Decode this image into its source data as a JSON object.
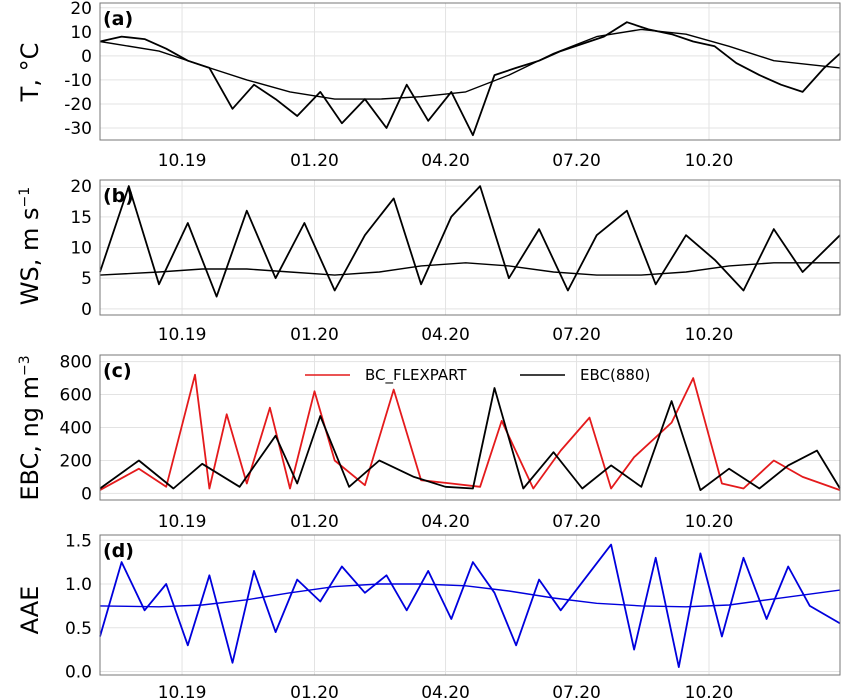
{
  "figure": {
    "x_tick_labels": [
      "10.19",
      "01.20",
      "04.20",
      "07.20",
      "10.20"
    ]
  },
  "chart_data": [
    {
      "type": "line",
      "panel_label": "(a)",
      "ylabel": "T, °C",
      "ylabel_main": "T, ",
      "ylabel_unit": "°C",
      "ylim": [
        -35,
        22
      ],
      "y_ticks": [
        20,
        10,
        0,
        -10,
        -20,
        -30
      ],
      "x_range": [
        "2019-08-05",
        "2020-12-31"
      ],
      "x_tick_dates": [
        "2019-10-01",
        "2020-01-01",
        "2020-04-01",
        "2020-07-01",
        "2020-10-01"
      ],
      "x_tick_labels": [
        "10.19",
        "01.20",
        "04.20",
        "07.20",
        "10.20"
      ],
      "grid": true,
      "series": [
        {
          "color": "#000000",
          "style": "daily",
          "x": [
            "2019-08-05",
            "2019-08-20",
            "2019-09-05",
            "2019-09-20",
            "2019-10-05",
            "2019-10-20",
            "2019-11-05",
            "2019-11-20",
            "2019-12-05",
            "2019-12-20",
            "2020-01-05",
            "2020-01-20",
            "2020-02-05",
            "2020-02-20",
            "2020-03-05",
            "2020-03-20",
            "2020-04-05",
            "2020-04-20",
            "2020-05-05",
            "2020-05-20",
            "2020-06-05",
            "2020-06-20",
            "2020-07-05",
            "2020-07-20",
            "2020-08-05",
            "2020-08-20",
            "2020-09-05",
            "2020-09-20",
            "2020-10-05",
            "2020-10-20",
            "2020-11-05",
            "2020-11-20",
            "2020-12-05",
            "2020-12-20",
            "2020-12-31"
          ],
          "y": [
            6,
            8,
            7,
            3,
            -2,
            -5,
            -22,
            -12,
            -18,
            -25,
            -15,
            -28,
            -18,
            -30,
            -12,
            -27,
            -15,
            -33,
            -8,
            -5,
            -2,
            2,
            5,
            8,
            14,
            11,
            9,
            6,
            4,
            -3,
            -8,
            -12,
            -15,
            -5,
            1
          ]
        },
        {
          "color": "#000000",
          "style": "smooth",
          "x": [
            "2019-08-05",
            "2019-09-15",
            "2019-10-15",
            "2019-11-15",
            "2019-12-15",
            "2020-01-15",
            "2020-02-15",
            "2020-03-15",
            "2020-04-15",
            "2020-05-15",
            "2020-06-15",
            "2020-07-15",
            "2020-08-15",
            "2020-09-15",
            "2020-10-15",
            "2020-11-15",
            "2020-12-31"
          ],
          "y": [
            6,
            2,
            -4,
            -10,
            -15,
            -18,
            -18,
            -17,
            -15,
            -8,
            1,
            8,
            11,
            9,
            4,
            -2,
            -5
          ]
        }
      ]
    },
    {
      "type": "line",
      "panel_label": "(b)",
      "ylabel": "WS, m s−1",
      "ylabel_main": "WS, m s",
      "ylabel_unit": "−1",
      "ylim": [
        -1,
        21
      ],
      "y_ticks": [
        0,
        5,
        10,
        15,
        20
      ],
      "x_range": [
        "2019-08-05",
        "2020-12-31"
      ],
      "x_tick_dates": [
        "2019-10-01",
        "2020-01-01",
        "2020-04-01",
        "2020-07-01",
        "2020-10-01"
      ],
      "x_tick_labels": [
        "10.19",
        "01.20",
        "04.20",
        "07.20",
        "10.20"
      ],
      "grid": true,
      "series": [
        {
          "color": "#000000",
          "style": "daily",
          "x": [
            "2019-08-05",
            "2019-08-25",
            "2019-09-15",
            "2019-10-05",
            "2019-10-25",
            "2019-11-15",
            "2019-12-05",
            "2019-12-25",
            "2020-01-15",
            "2020-02-05",
            "2020-02-25",
            "2020-03-15",
            "2020-04-05",
            "2020-04-25",
            "2020-05-15",
            "2020-06-05",
            "2020-06-25",
            "2020-07-15",
            "2020-08-05",
            "2020-08-25",
            "2020-09-15",
            "2020-10-05",
            "2020-10-25",
            "2020-11-15",
            "2020-12-05",
            "2020-12-31"
          ],
          "y": [
            6,
            20,
            4,
            14,
            2,
            16,
            5,
            14,
            3,
            12,
            18,
            4,
            15,
            20,
            5,
            13,
            3,
            12,
            16,
            4,
            12,
            8,
            3,
            13,
            6,
            12
          ]
        },
        {
          "color": "#000000",
          "style": "smooth",
          "x": [
            "2019-08-05",
            "2019-09-15",
            "2019-10-15",
            "2019-11-15",
            "2019-12-15",
            "2020-01-15",
            "2020-02-15",
            "2020-03-15",
            "2020-04-15",
            "2020-05-15",
            "2020-06-15",
            "2020-07-15",
            "2020-08-15",
            "2020-09-15",
            "2020-10-15",
            "2020-11-15",
            "2020-12-31"
          ],
          "y": [
            5.5,
            6,
            6.5,
            6.5,
            6,
            5.5,
            6,
            7,
            7.5,
            7,
            6,
            5.5,
            5.5,
            6,
            7,
            7.5,
            7.5
          ]
        }
      ]
    },
    {
      "type": "line",
      "panel_label": "(c)",
      "ylabel": "EBC, ng m−3",
      "ylabel_main": "EBC, ng m",
      "ylabel_unit": "−3",
      "ylim": [
        -40,
        840
      ],
      "y_ticks": [
        0,
        200,
        400,
        600,
        800
      ],
      "x_range": [
        "2019-08-05",
        "2020-12-31"
      ],
      "x_tick_dates": [
        "2019-10-01",
        "2020-01-01",
        "2020-04-01",
        "2020-07-01",
        "2020-10-01"
      ],
      "x_tick_labels": [
        "10.19",
        "01.20",
        "04.20",
        "07.20",
        "10.20"
      ],
      "grid": true,
      "legend": {
        "placement": "top-center"
      },
      "series": [
        {
          "name": "BC_FLEXPART",
          "color": "#e41a1c",
          "x": [
            "2019-08-05",
            "2019-09-01",
            "2019-09-20",
            "2019-10-10",
            "2019-10-20",
            "2019-11-01",
            "2019-11-15",
            "2019-12-01",
            "2019-12-15",
            "2020-01-01",
            "2020-01-15",
            "2020-02-05",
            "2020-02-25",
            "2020-03-15",
            "2020-04-05",
            "2020-04-25",
            "2020-05-10",
            "2020-06-01",
            "2020-06-20",
            "2020-07-10",
            "2020-07-25",
            "2020-08-10",
            "2020-09-05",
            "2020-09-20",
            "2020-10-10",
            "2020-10-25",
            "2020-11-15",
            "2020-12-05",
            "2020-12-31"
          ],
          "y": [
            20,
            150,
            40,
            720,
            30,
            480,
            60,
            520,
            30,
            620,
            200,
            50,
            630,
            80,
            60,
            40,
            440,
            30,
            260,
            460,
            30,
            220,
            430,
            700,
            60,
            30,
            200,
            100,
            20
          ]
        },
        {
          "name": "EBC(880)",
          "color": "#000000",
          "x": [
            "2019-08-05",
            "2019-09-01",
            "2019-09-25",
            "2019-10-15",
            "2019-11-10",
            "2019-12-05",
            "2019-12-20",
            "2020-01-05",
            "2020-01-25",
            "2020-02-15",
            "2020-03-10",
            "2020-04-01",
            "2020-04-20",
            "2020-05-05",
            "2020-05-25",
            "2020-06-15",
            "2020-07-05",
            "2020-07-25",
            "2020-08-15",
            "2020-09-05",
            "2020-09-25",
            "2020-10-15",
            "2020-11-05",
            "2020-11-25",
            "2020-12-15",
            "2020-12-31"
          ],
          "y": [
            30,
            200,
            30,
            180,
            40,
            350,
            60,
            470,
            40,
            200,
            100,
            40,
            30,
            640,
            30,
            250,
            30,
            170,
            40,
            560,
            20,
            150,
            30,
            170,
            260,
            30
          ]
        }
      ]
    },
    {
      "type": "line",
      "panel_label": "(d)",
      "ylabel": "AAE",
      "ylim": [
        -0.04,
        1.56
      ],
      "y_ticks": [
        0.0,
        0.5,
        1.0,
        1.5
      ],
      "y_tick_labels": [
        "0.0",
        "0.5",
        "1.0",
        "1.5"
      ],
      "x_range": [
        "2019-08-05",
        "2020-12-31"
      ],
      "x_tick_dates": [
        "2019-10-01",
        "2020-01-01",
        "2020-04-01",
        "2020-07-01",
        "2020-10-01"
      ],
      "x_tick_labels": [
        "10.19",
        "01.20",
        "04.20",
        "07.20",
        "10.20"
      ],
      "grid": true,
      "series": [
        {
          "color": "#0000dd",
          "style": "daily",
          "x": [
            "2019-08-05",
            "2019-08-20",
            "2019-09-05",
            "2019-09-20",
            "2019-10-05",
            "2019-10-20",
            "2019-11-05",
            "2019-11-20",
            "2019-12-05",
            "2019-12-20",
            "2020-01-05",
            "2020-01-20",
            "2020-02-05",
            "2020-02-20",
            "2020-03-05",
            "2020-03-20",
            "2020-04-05",
            "2020-04-20",
            "2020-05-05",
            "2020-05-20",
            "2020-06-05",
            "2020-06-20",
            "2020-07-25",
            "2020-08-10",
            "2020-08-25",
            "2020-09-10",
            "2020-09-25",
            "2020-10-10",
            "2020-10-25",
            "2020-11-10",
            "2020-11-25",
            "2020-12-10",
            "2020-12-31"
          ],
          "y": [
            0.4,
            1.25,
            0.7,
            1.0,
            0.3,
            1.1,
            0.1,
            1.15,
            0.45,
            1.05,
            0.8,
            1.2,
            0.9,
            1.1,
            0.7,
            1.15,
            0.6,
            1.25,
            0.9,
            0.3,
            1.05,
            0.7,
            1.45,
            0.25,
            1.3,
            0.05,
            1.35,
            0.4,
            1.3,
            0.6,
            1.2,
            0.75,
            0.55
          ]
        },
        {
          "color": "#0000dd",
          "style": "smooth",
          "x": [
            "2019-08-05",
            "2019-09-15",
            "2019-10-15",
            "2019-11-15",
            "2019-12-15",
            "2020-01-15",
            "2020-02-15",
            "2020-03-15",
            "2020-04-15",
            "2020-05-15",
            "2020-06-15",
            "2020-07-15",
            "2020-08-15",
            "2020-09-15",
            "2020-10-15",
            "2020-11-15",
            "2020-12-31"
          ],
          "y": [
            0.75,
            0.74,
            0.76,
            0.82,
            0.9,
            0.97,
            1.0,
            1.0,
            0.98,
            0.92,
            0.84,
            0.78,
            0.75,
            0.74,
            0.76,
            0.83,
            0.93
          ]
        }
      ]
    }
  ]
}
